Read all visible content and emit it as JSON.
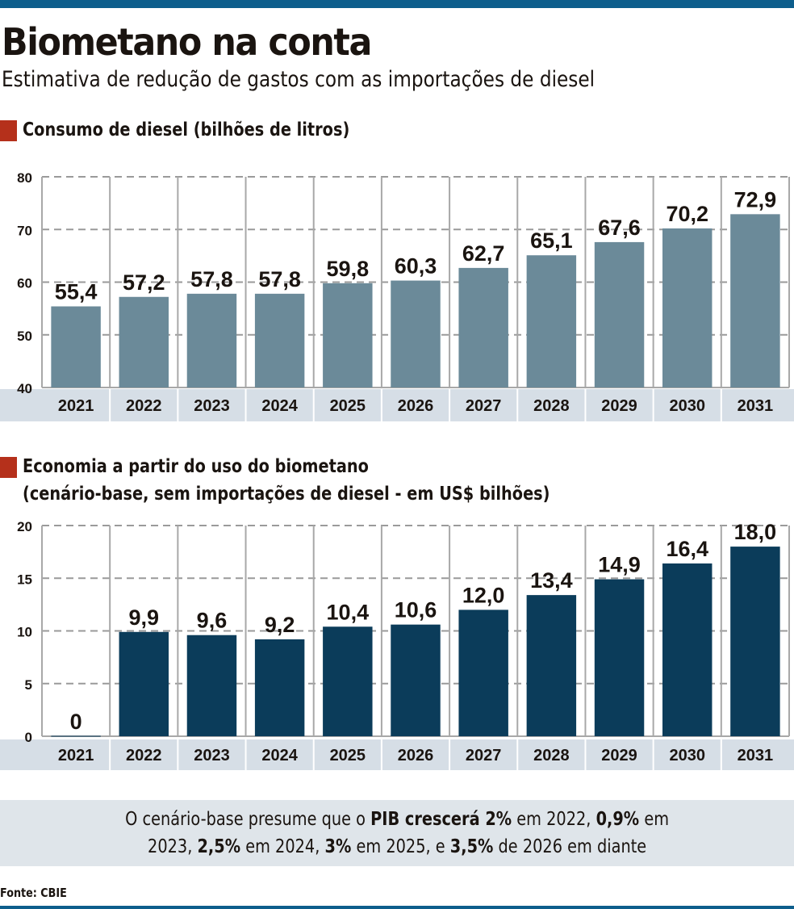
{
  "header": {
    "title": "Biometano na conta",
    "subtitle": "Estimativa de redução de gastos com as importações de diesel"
  },
  "colors": {
    "accent_bar": "#0d5e8c",
    "section_marker": "#b5301b",
    "chart1_bar": "#6b8a99",
    "chart2_bar": "#0b3c5a",
    "axis_band": "#d6dee6"
  },
  "chart_data": [
    {
      "type": "bar",
      "title": "Consumo de diesel (bilhões de litros)",
      "categories": [
        "2021",
        "2022",
        "2023",
        "2024",
        "2025",
        "2026",
        "2027",
        "2028",
        "2029",
        "2030",
        "2031"
      ],
      "values": [
        55.4,
        57.2,
        57.8,
        57.8,
        59.8,
        60.3,
        62.7,
        65.1,
        67.6,
        70.2,
        72.9
      ],
      "value_labels": [
        "55,4",
        "57,2",
        "57,8",
        "57,8",
        "59,8",
        "60,3",
        "62,7",
        "65,1",
        "67,6",
        "70,2",
        "72,9"
      ],
      "ylim": [
        40,
        80
      ],
      "yticks": [
        40,
        50,
        60,
        70,
        80
      ],
      "xlabel": "",
      "ylabel": "",
      "grid": true
    },
    {
      "type": "bar",
      "title": "Economia a partir do uso do biometano",
      "subtitle": "(cenário-base, sem importações de diesel - em US$ bilhões)",
      "categories": [
        "2021",
        "2022",
        "2023",
        "2024",
        "2025",
        "2026",
        "2027",
        "2028",
        "2029",
        "2030",
        "2031"
      ],
      "values": [
        0,
        9.9,
        9.6,
        9.2,
        10.4,
        10.6,
        12.0,
        13.4,
        14.9,
        16.4,
        18.0
      ],
      "value_labels": [
        "0",
        "9,9",
        "9,6",
        "9,2",
        "10,4",
        "10,6",
        "12,0",
        "13,4",
        "14,9",
        "16,4",
        "18,0"
      ],
      "ylim": [
        0,
        20
      ],
      "yticks": [
        0,
        5,
        10,
        15,
        20
      ],
      "xlabel": "",
      "ylabel": "",
      "grid": true
    }
  ],
  "note": {
    "line1": [
      {
        "text": "O cenário-base presume que o ",
        "bold": false
      },
      {
        "text": "PIB crescerá 2%",
        "bold": true
      },
      {
        "text": " em 2022, ",
        "bold": false
      },
      {
        "text": "0,9%",
        "bold": true
      },
      {
        "text": " em",
        "bold": false
      }
    ],
    "line2": [
      {
        "text": "2023, ",
        "bold": false
      },
      {
        "text": "2,5%",
        "bold": true
      },
      {
        "text": " em 2024, ",
        "bold": false
      },
      {
        "text": "3%",
        "bold": true
      },
      {
        "text": " em 2025, e ",
        "bold": false
      },
      {
        "text": "3,5%",
        "bold": true
      },
      {
        "text": " de 2026 em diante",
        "bold": false
      }
    ]
  },
  "source": "Fonte: CBIE"
}
